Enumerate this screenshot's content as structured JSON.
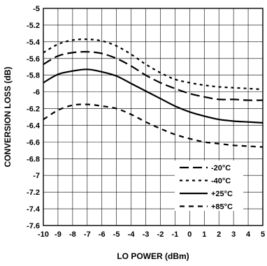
{
  "chart_data": {
    "type": "line",
    "title": "",
    "xlabel": "LO POWER (dBm)",
    "ylabel": "CONVERSION LOSS (dB)",
    "xlim": [
      -10,
      5
    ],
    "ylim": [
      -7.6,
      -5
    ],
    "x_ticks": [
      "-10",
      "-9",
      "-8",
      "-7",
      "-6",
      "-5",
      "-4",
      "-3",
      "-2",
      "-1",
      "0",
      "1",
      "2",
      "3",
      "4",
      "5"
    ],
    "y_ticks": [
      "-5",
      "-5.2",
      "-5.4",
      "-5.6",
      "-5.8",
      "-6",
      "-6.2",
      "-6.4",
      "-6.6",
      "-6.8",
      "-7",
      "-7.2",
      "-7.4",
      "-7.6"
    ],
    "grid": true,
    "legend_position": "bottom-right",
    "series": [
      {
        "name": "-20°C",
        "style": "long-dash",
        "x": [
          -10,
          -9,
          -8,
          -7,
          -6,
          -5,
          -4,
          -3,
          -2,
          -1,
          0,
          1,
          2,
          3,
          4,
          5
        ],
        "y": [
          -5.67,
          -5.57,
          -5.53,
          -5.52,
          -5.54,
          -5.6,
          -5.69,
          -5.8,
          -5.89,
          -5.96,
          -6.02,
          -6.06,
          -6.09,
          -6.09,
          -6.1,
          -6.1
        ]
      },
      {
        "name": "-40°C",
        "style": "short-dash",
        "x": [
          -10,
          -9,
          -8,
          -7,
          -6,
          -5,
          -4,
          -3,
          -2,
          -1,
          0,
          1,
          2,
          3,
          4,
          5
        ],
        "y": [
          -5.53,
          -5.43,
          -5.38,
          -5.37,
          -5.39,
          -5.45,
          -5.55,
          -5.67,
          -5.77,
          -5.85,
          -5.89,
          -5.92,
          -5.94,
          -5.95,
          -5.96,
          -5.97
        ]
      },
      {
        "name": "+25°C",
        "style": "solid",
        "x": [
          -10,
          -9,
          -8,
          -7,
          -6,
          -5,
          -4,
          -3,
          -2,
          -1,
          0,
          1,
          2,
          3,
          4,
          5
        ],
        "y": [
          -5.89,
          -5.79,
          -5.75,
          -5.73,
          -5.76,
          -5.81,
          -5.9,
          -5.99,
          -6.08,
          -6.17,
          -6.24,
          -6.29,
          -6.33,
          -6.35,
          -6.36,
          -6.37
        ]
      },
      {
        "name": "+85°C",
        "style": "medium-dash",
        "x": [
          -10,
          -9,
          -8,
          -7,
          -6,
          -5,
          -4,
          -3,
          -2,
          -1,
          0,
          1,
          2,
          3,
          4,
          5
        ],
        "y": [
          -6.33,
          -6.22,
          -6.16,
          -6.15,
          -6.17,
          -6.2,
          -6.27,
          -6.36,
          -6.44,
          -6.51,
          -6.56,
          -6.6,
          -6.62,
          -6.64,
          -6.65,
          -6.66
        ]
      }
    ]
  }
}
